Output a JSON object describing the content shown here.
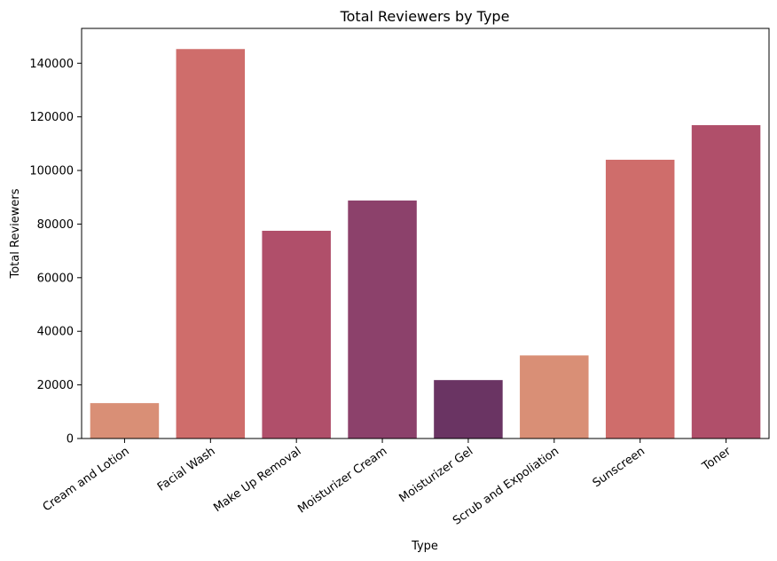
{
  "chart_data": {
    "type": "bar",
    "title": "Total Reviewers by Type",
    "xlabel": "Type",
    "ylabel": "Total Reviewers",
    "categories": [
      "Cream and Lotion",
      "Facial Wash",
      "Make Up Removal",
      "Moisturizer Cream",
      "Moisturizer Gel",
      "Scrub and Expoliation",
      "Sunscreen",
      "Toner"
    ],
    "values": [
      13200,
      145300,
      77500,
      88800,
      21800,
      31000,
      104000,
      116900
    ],
    "colors": [
      "#d98f76",
      "#cf6d6b",
      "#b04f6a",
      "#8c416b",
      "#6a3463",
      "#d98f76",
      "#cf6d6b",
      "#b04f6a"
    ],
    "ylim": [
      0,
      153000
    ],
    "yticks": [
      0,
      20000,
      40000,
      60000,
      80000,
      100000,
      120000,
      140000
    ],
    "grid": false,
    "legend": "none"
  }
}
